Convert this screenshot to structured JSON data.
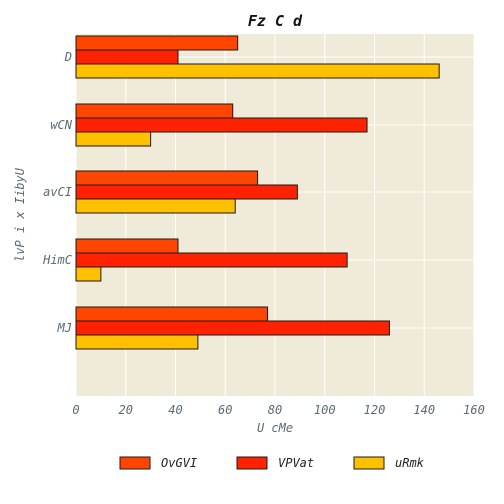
{
  "chart_data": {
    "type": "bar",
    "orientation": "horizontal",
    "title": "Fz C d",
    "xlabel": "U cMe",
    "ylabel": "lvP i x IibyU",
    "categories": [
      "MJ",
      "HimC",
      "avCI",
      "wCN",
      "D"
    ],
    "xlim": [
      0,
      160
    ],
    "xticks": [
      0,
      20,
      40,
      60,
      80,
      100,
      120,
      140,
      160
    ],
    "grid": true,
    "legend_position": "bottom",
    "series": [
      {
        "name": "OvGVI",
        "color": "#ff4500",
        "values": [
          77,
          41,
          73,
          63,
          65
        ]
      },
      {
        "name": "VPVat",
        "color": "#ff2200",
        "values": [
          126,
          109,
          89,
          117,
          41
        ]
      },
      {
        "name": "uRmk",
        "color": "#ffc000",
        "values": [
          49,
          10,
          64,
          30,
          146
        ]
      }
    ],
    "plot_background": "#f0ead8",
    "grid_color": "#ffffff"
  }
}
